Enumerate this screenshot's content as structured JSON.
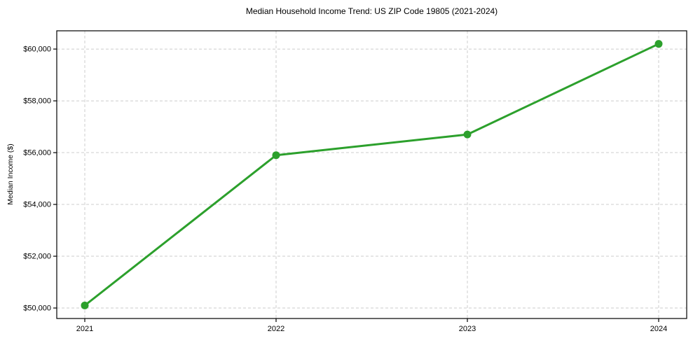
{
  "chart_data": {
    "type": "line",
    "title": "Median Household Income Trend: US ZIP Code 19805 (2021-2024)",
    "xlabel": "",
    "ylabel": "Median Income ($)",
    "x": [
      2021,
      2022,
      2023,
      2024
    ],
    "xtick_labels": [
      "2021",
      "2022",
      "2023",
      "2024"
    ],
    "series": [
      {
        "name": "Median Household Income",
        "values": [
          50100,
          55900,
          56700,
          60200
        ]
      }
    ],
    "yticks": [
      50000,
      52000,
      54000,
      56000,
      58000,
      60000
    ],
    "ytick_labels": [
      "$50,000",
      "$52,000",
      "$54,000",
      "$56,000",
      "$58,000",
      "$60,000"
    ],
    "ylim": [
      49595,
      60705
    ],
    "grid": true,
    "grid_style": "dashed",
    "legend_position": "none",
    "line_color": "#2ca02c",
    "marker": "circle",
    "background_color": "#ffffff"
  }
}
